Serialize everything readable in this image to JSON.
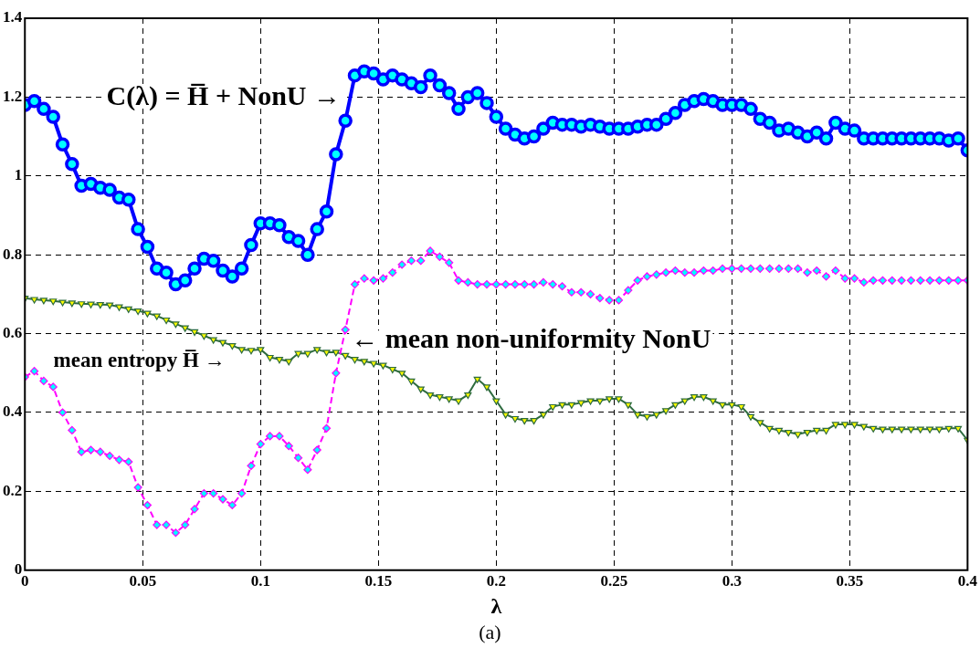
{
  "chart_data": {
    "type": "line",
    "xlabel": "λ",
    "x": [
      0,
      0.004,
      0.008,
      0.012,
      0.016,
      0.02,
      0.024,
      0.028,
      0.032,
      0.036,
      0.04,
      0.044,
      0.048,
      0.052,
      0.056,
      0.06,
      0.064,
      0.068,
      0.072,
      0.076,
      0.08,
      0.084,
      0.088,
      0.092,
      0.096,
      0.1,
      0.104,
      0.108,
      0.112,
      0.116,
      0.12,
      0.124,
      0.128,
      0.132,
      0.136,
      0.14,
      0.144,
      0.148,
      0.152,
      0.156,
      0.16,
      0.164,
      0.168,
      0.172,
      0.176,
      0.18,
      0.184,
      0.188,
      0.192,
      0.196,
      0.2,
      0.204,
      0.208,
      0.212,
      0.216,
      0.22,
      0.224,
      0.228,
      0.232,
      0.236,
      0.24,
      0.244,
      0.248,
      0.252,
      0.256,
      0.26,
      0.264,
      0.268,
      0.272,
      0.276,
      0.28,
      0.284,
      0.288,
      0.292,
      0.296,
      0.3,
      0.304,
      0.308,
      0.312,
      0.316,
      0.32,
      0.324,
      0.328,
      0.332,
      0.336,
      0.34,
      0.344,
      0.348,
      0.352,
      0.356,
      0.36,
      0.364,
      0.368,
      0.372,
      0.376,
      0.38,
      0.384,
      0.388,
      0.392,
      0.396,
      0.4
    ],
    "series": [
      {
        "color": "#0000ff",
        "marker": "circle",
        "line_style": "solid",
        "values": [
          1.18,
          1.19,
          1.17,
          1.15,
          1.08,
          1.03,
          0.975,
          0.98,
          0.97,
          0.965,
          0.945,
          0.94,
          0.865,
          0.82,
          0.765,
          0.755,
          0.725,
          0.735,
          0.765,
          0.79,
          0.785,
          0.76,
          0.745,
          0.765,
          0.825,
          0.88,
          0.88,
          0.875,
          0.845,
          0.835,
          0.8,
          0.865,
          0.91,
          1.055,
          1.14,
          1.255,
          1.265,
          1.26,
          1.245,
          1.255,
          1.245,
          1.235,
          1.225,
          1.255,
          1.23,
          1.21,
          1.17,
          1.2,
          1.21,
          1.185,
          1.15,
          1.12,
          1.105,
          1.095,
          1.1,
          1.12,
          1.135,
          1.13,
          1.13,
          1.125,
          1.13,
          1.125,
          1.12,
          1.12,
          1.12,
          1.125,
          1.13,
          1.13,
          1.145,
          1.16,
          1.18,
          1.19,
          1.195,
          1.19,
          1.18,
          1.18,
          1.18,
          1.17,
          1.145,
          1.135,
          1.115,
          1.12,
          1.11,
          1.1,
          1.11,
          1.095,
          1.135,
          1.12,
          1.115,
          1.095,
          1.095,
          1.095,
          1.095,
          1.095,
          1.095,
          1.095,
          1.095,
          1.095,
          1.09,
          1.095,
          1.065
        ]
      },
      {
        "color": "#ff00ff",
        "marker": "diamond",
        "line_style": "dashed",
        "values": [
          0.49,
          0.505,
          0.48,
          0.465,
          0.4,
          0.355,
          0.3,
          0.305,
          0.3,
          0.29,
          0.28,
          0.275,
          0.21,
          0.165,
          0.115,
          0.115,
          0.095,
          0.115,
          0.155,
          0.195,
          0.195,
          0.18,
          0.165,
          0.195,
          0.265,
          0.32,
          0.34,
          0.34,
          0.315,
          0.285,
          0.255,
          0.305,
          0.36,
          0.5,
          0.61,
          0.725,
          0.74,
          0.735,
          0.74,
          0.755,
          0.775,
          0.785,
          0.785,
          0.81,
          0.795,
          0.78,
          0.735,
          0.73,
          0.725,
          0.725,
          0.725,
          0.725,
          0.725,
          0.725,
          0.725,
          0.73,
          0.725,
          0.72,
          0.705,
          0.705,
          0.7,
          0.69,
          0.685,
          0.685,
          0.71,
          0.735,
          0.745,
          0.75,
          0.755,
          0.76,
          0.755,
          0.755,
          0.76,
          0.76,
          0.765,
          0.765,
          0.765,
          0.765,
          0.765,
          0.765,
          0.765,
          0.765,
          0.765,
          0.755,
          0.76,
          0.745,
          0.76,
          0.74,
          0.74,
          0.73,
          0.735,
          0.735,
          0.735,
          0.735,
          0.735,
          0.735,
          0.735,
          0.735,
          0.735,
          0.735,
          0.735
        ]
      },
      {
        "color": "#2e6b3f",
        "marker": "triangle",
        "line_style": "solid",
        "values": [
          0.69,
          0.687,
          0.685,
          0.683,
          0.68,
          0.678,
          0.676,
          0.675,
          0.674,
          0.673,
          0.668,
          0.663,
          0.658,
          0.652,
          0.645,
          0.635,
          0.625,
          0.615,
          0.605,
          0.595,
          0.585,
          0.578,
          0.57,
          0.56,
          0.558,
          0.56,
          0.54,
          0.535,
          0.53,
          0.55,
          0.55,
          0.56,
          0.553,
          0.553,
          0.545,
          0.535,
          0.53,
          0.525,
          0.52,
          0.51,
          0.5,
          0.48,
          0.46,
          0.445,
          0.44,
          0.435,
          0.43,
          0.445,
          0.485,
          0.465,
          0.43,
          0.395,
          0.385,
          0.38,
          0.38,
          0.395,
          0.415,
          0.42,
          0.42,
          0.425,
          0.43,
          0.43,
          0.435,
          0.435,
          0.42,
          0.395,
          0.39,
          0.395,
          0.405,
          0.42,
          0.43,
          0.44,
          0.44,
          0.43,
          0.42,
          0.42,
          0.415,
          0.39,
          0.375,
          0.36,
          0.355,
          0.35,
          0.345,
          0.35,
          0.355,
          0.355,
          0.37,
          0.37,
          0.37,
          0.365,
          0.36,
          0.358,
          0.358,
          0.358,
          0.358,
          0.358,
          0.358,
          0.358,
          0.36,
          0.36,
          0.33
        ]
      }
    ],
    "xlim": [
      0,
      0.4
    ],
    "xticks": [
      0,
      0.05,
      0.1,
      0.15,
      0.2,
      0.25,
      0.3,
      0.35,
      0.4
    ],
    "ylim": [
      0,
      1.4
    ],
    "yticks": [
      0,
      0.2,
      0.4,
      0.6,
      0.8,
      1,
      1.2,
      1.4
    ],
    "grid": true,
    "legend": false,
    "annotations": [
      "C(λ) = H̅ + NonU →",
      {
        "text": "← mean non-uniformity NonU",
        "x": 0.136,
        "y": 0.61
      },
      "mean entropy H̅ →",
      "(a)"
    ]
  }
}
